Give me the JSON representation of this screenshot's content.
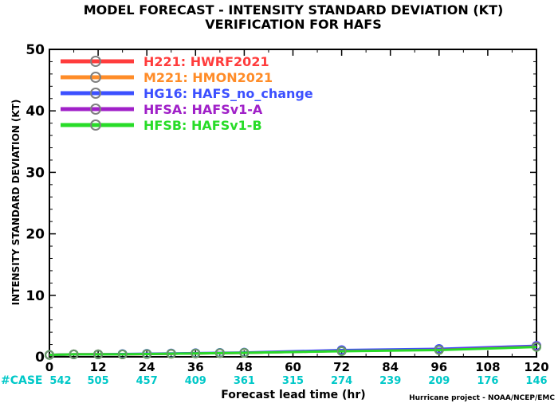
{
  "title_line1": "MODEL FORECAST - INTENSITY STANDARD DEVIATION (KT)",
  "title_line2": "VERIFICATION FOR HAFS",
  "credit": "Hurricane project - NOAA/NCEP/EMC",
  "case_label": "#CASE",
  "colors": {
    "axis": "#000000",
    "case_counts": "#00c8c8"
  },
  "chart_data": {
    "type": "line",
    "title": "MODEL FORECAST - INTENSITY STANDARD DEVIATION (KT)",
    "subtitle": "VERIFICATION FOR HAFS",
    "xlabel": "Forecast lead time (hr)",
    "ylabel": "INTENSITY STANDARD DEVIATION (KT)",
    "xlim": [
      0,
      120
    ],
    "ylim": [
      0,
      50
    ],
    "x_ticks": [
      0,
      12,
      24,
      36,
      48,
      60,
      72,
      84,
      96,
      108,
      120
    ],
    "y_ticks": [
      0,
      10,
      20,
      30,
      40,
      50
    ],
    "grid": false,
    "legend_position": "top-left",
    "case_counts": {
      "x": [
        0,
        12,
        24,
        36,
        48,
        60,
        72,
        84,
        96,
        108,
        120
      ],
      "values": [
        542,
        505,
        457,
        409,
        361,
        315,
        274,
        239,
        209,
        176,
        146
      ]
    },
    "series": [
      {
        "name": "H221: HWRF2021",
        "color": "#ff3c3c",
        "x": [
          0,
          6,
          12,
          18,
          24,
          30,
          36,
          42,
          48,
          72,
          96,
          120
        ],
        "values": [
          0.3,
          0.4,
          0.4,
          0.4,
          0.45,
          0.5,
          0.55,
          0.6,
          0.65,
          0.95,
          1.15,
          1.7
        ]
      },
      {
        "name": "M221: HMON2021",
        "color": "#ff8c28",
        "x": [
          0,
          6,
          12,
          18,
          24,
          30,
          36,
          42,
          48,
          72,
          96,
          120
        ],
        "values": [
          0.3,
          0.4,
          0.4,
          0.4,
          0.45,
          0.5,
          0.55,
          0.6,
          0.65,
          0.95,
          1.15,
          1.7
        ]
      },
      {
        "name": "HG16: HAFS_no_change",
        "color": "#3c50ff",
        "x": [
          0,
          6,
          12,
          18,
          24,
          30,
          36,
          42,
          48,
          72,
          96,
          120
        ],
        "values": [
          0.3,
          0.4,
          0.4,
          0.45,
          0.5,
          0.55,
          0.6,
          0.65,
          0.7,
          1.1,
          1.3,
          1.8
        ]
      },
      {
        "name": "HFSA: HAFSv1-A",
        "color": "#a020c8",
        "x": [
          0,
          6,
          12,
          18,
          24,
          30,
          36,
          42,
          48,
          72,
          96,
          120
        ],
        "values": [
          0.3,
          0.4,
          0.4,
          0.4,
          0.45,
          0.5,
          0.55,
          0.6,
          0.65,
          0.95,
          1.15,
          1.7
        ]
      },
      {
        "name": "HFSB: HAFSv1-B",
        "color": "#28dc28",
        "x": [
          0,
          6,
          12,
          18,
          24,
          30,
          36,
          42,
          48,
          72,
          96,
          120
        ],
        "values": [
          0.3,
          0.4,
          0.4,
          0.4,
          0.45,
          0.5,
          0.55,
          0.6,
          0.65,
          0.9,
          1.1,
          1.6
        ]
      }
    ]
  }
}
